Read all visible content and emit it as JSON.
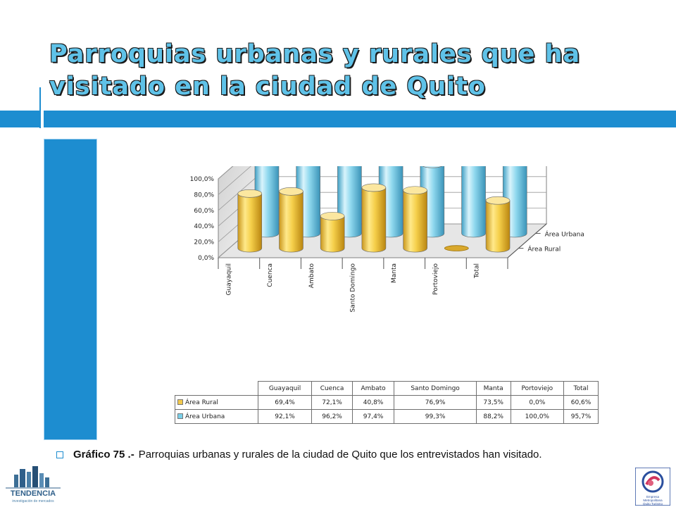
{
  "title": "Parroquias urbanas y rurales que ha visitado en la ciudad de Quito",
  "colors": {
    "accent": "#1d8dd0",
    "rural": "#f2c94c",
    "urbana": "#79cfe8"
  },
  "chart_data": {
    "type": "bar",
    "title": "",
    "categories": [
      "Guayaquil",
      "Cuenca",
      "Ambato",
      "Santo Domingo",
      "Manta",
      "Portoviejo",
      "Total"
    ],
    "series": [
      {
        "name": "Área Rural",
        "values": [
          69.4,
          72.1,
          40.8,
          76.9,
          73.5,
          0.0,
          60.6
        ],
        "labels": [
          "69,4%",
          "72,1%",
          "40,8%",
          "76,9%",
          "73,5%",
          "0,0%",
          "60,6%"
        ]
      },
      {
        "name": "Área Urbana",
        "values": [
          92.1,
          96.2,
          97.4,
          99.3,
          88.2,
          100.0,
          95.7
        ],
        "labels": [
          "92,1%",
          "96,2%",
          "97,4%",
          "99,3%",
          "88,2%",
          "100,0%",
          "95,7%"
        ]
      }
    ],
    "yticks": [
      "0,0%",
      "20,0%",
      "40,0%",
      "60,0%",
      "80,0%",
      "100,0%"
    ],
    "ylim": [
      0,
      100
    ],
    "style": "3d-cylinder",
    "legend": "right"
  },
  "caption": {
    "label": "Gráfico 75 .-",
    "text": "Parroquias urbanas y rurales de la ciudad de Quito que los entrevistados han visitado."
  },
  "logos": {
    "left_text": "TENDENCIA",
    "left_sub": "investigación de mercados",
    "right_text": "Empresa Metropolitana Quito Turismo"
  }
}
